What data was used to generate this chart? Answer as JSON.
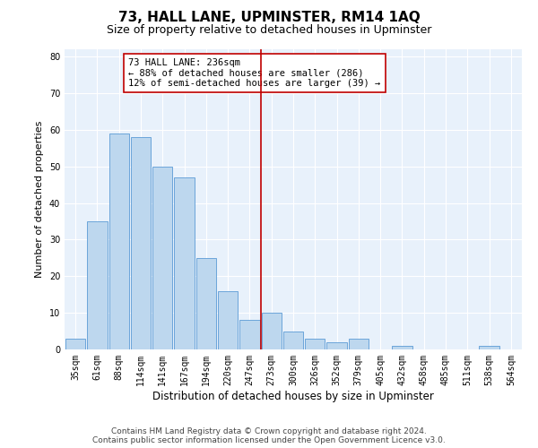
{
  "title": "73, HALL LANE, UPMINSTER, RM14 1AQ",
  "subtitle": "Size of property relative to detached houses in Upminster",
  "xlabel": "Distribution of detached houses by size in Upminster",
  "ylabel": "Number of detached properties",
  "categories": [
    "35sqm",
    "61sqm",
    "88sqm",
    "114sqm",
    "141sqm",
    "167sqm",
    "194sqm",
    "220sqm",
    "247sqm",
    "273sqm",
    "300sqm",
    "326sqm",
    "352sqm",
    "379sqm",
    "405sqm",
    "432sqm",
    "458sqm",
    "485sqm",
    "511sqm",
    "538sqm",
    "564sqm"
  ],
  "values": [
    3,
    35,
    59,
    58,
    50,
    47,
    25,
    16,
    8,
    10,
    5,
    3,
    2,
    3,
    0,
    1,
    0,
    0,
    0,
    1,
    0
  ],
  "bar_color": "#bdd7ee",
  "bar_edge_color": "#5b9bd5",
  "vline_x_index": 8,
  "vline_color": "#c00000",
  "annotation_line1": "73 HALL LANE: 236sqm",
  "annotation_line2": "← 88% of detached houses are smaller (286)",
  "annotation_line3": "12% of semi-detached houses are larger (39) →",
  "annotation_box_color": "#ffffff",
  "annotation_box_edge_color": "#c00000",
  "ylim": [
    0,
    82
  ],
  "yticks": [
    0,
    10,
    20,
    30,
    40,
    50,
    60,
    70,
    80
  ],
  "plot_bg_color": "#e8f1fb",
  "grid_color": "#ffffff",
  "footer_line1": "Contains HM Land Registry data © Crown copyright and database right 2024.",
  "footer_line2": "Contains public sector information licensed under the Open Government Licence v3.0.",
  "title_fontsize": 11,
  "subtitle_fontsize": 9,
  "xlabel_fontsize": 8.5,
  "ylabel_fontsize": 8,
  "tick_fontsize": 7,
  "annotation_fontsize": 7.5,
  "footer_fontsize": 6.5
}
